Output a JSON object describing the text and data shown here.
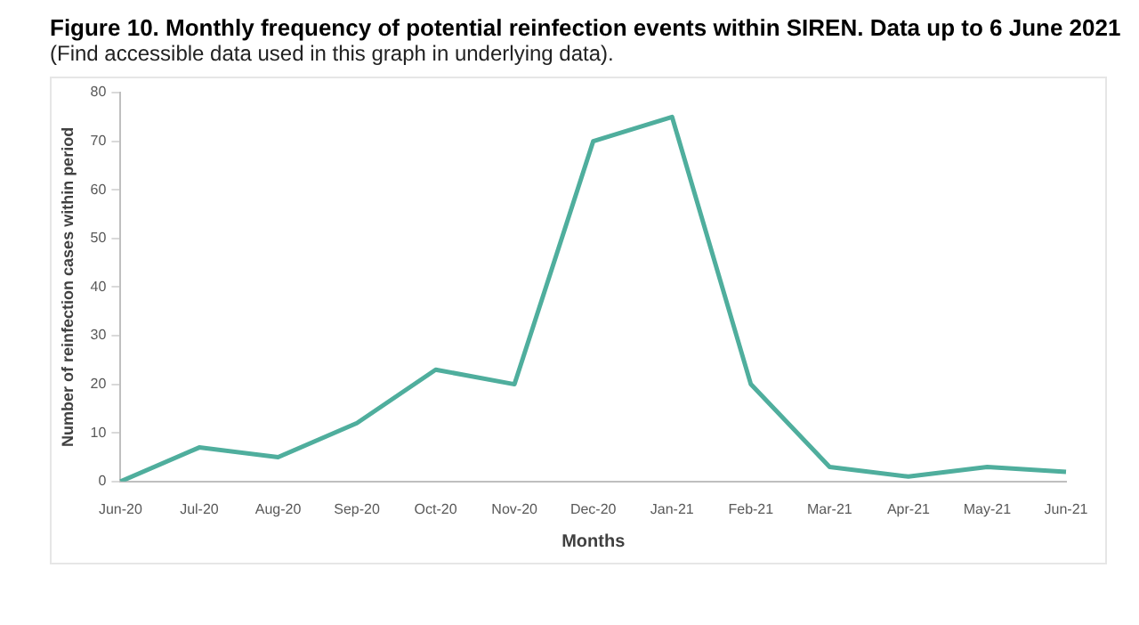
{
  "chart_data": {
    "type": "line",
    "title": "Figure 10. Monthly frequency of potential reinfection events within SIREN. Data up to 6 June 2021",
    "subtitle": "(Find accessible data used in this graph in underlying data).",
    "xlabel": "Months",
    "ylabel": "Number of reinfection cases within period",
    "categories": [
      "Jun-20",
      "Jul-20",
      "Aug-20",
      "Sep-20",
      "Oct-20",
      "Nov-20",
      "Dec-20",
      "Jan-21",
      "Feb-21",
      "Mar-21",
      "Apr-21",
      "May-21",
      "Jun-21"
    ],
    "series": [
      {
        "color": "#4fae9d",
        "values": [
          0,
          7,
          5,
          12,
          23,
          20,
          70,
          75,
          20,
          3,
          1,
          3,
          2
        ]
      }
    ],
    "ylim": [
      0,
      80
    ],
    "yticks": [
      0,
      10,
      20,
      30,
      40,
      50,
      60,
      70,
      80
    ],
    "grid": false,
    "legend": false,
    "marker": "none",
    "line_style": "solid"
  }
}
